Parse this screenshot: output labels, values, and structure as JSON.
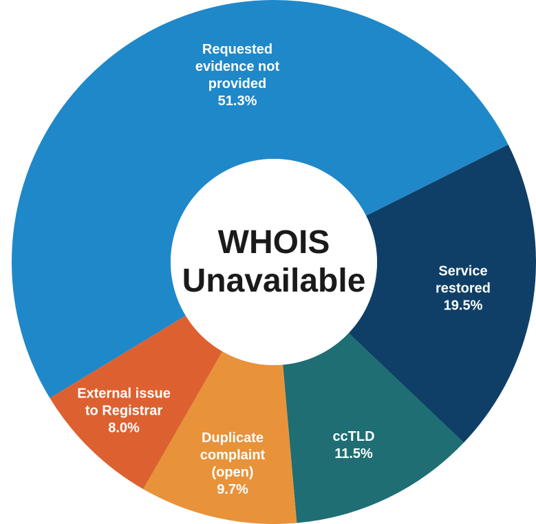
{
  "chart_data": {
    "type": "donut",
    "title": "WHOIS Unavailable",
    "categories": [
      "Requested evidence not provided",
      "Service restored",
      "ccTLD",
      "Duplicate complaint (open)",
      "External issue to Registrar"
    ],
    "values": [
      51.3,
      19.5,
      11.5,
      9.7,
      8.0
    ],
    "value_labels": [
      "51.3%",
      "19.5%",
      "11.5%",
      "9.7%",
      "8.0%"
    ],
    "colors": [
      "#1f88c9",
      "#0f3f66",
      "#1e6e73",
      "#e8923a",
      "#dd6130"
    ]
  }
}
